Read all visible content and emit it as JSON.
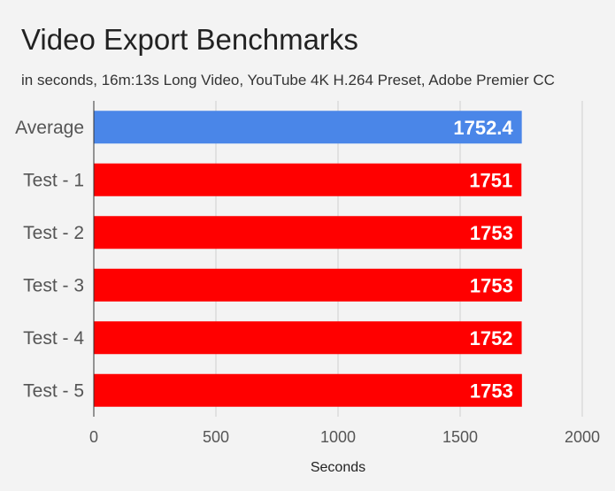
{
  "chart_data": {
    "type": "bar",
    "orientation": "horizontal",
    "title": "Video Export Benchmarks",
    "subtitle": "in seconds, 16m:13s Long Video, YouTube 4K H.264 Preset, Adobe Premier CC",
    "xlabel": "Seconds",
    "ylabel": "",
    "categories": [
      "Average",
      "Test - 1",
      "Test - 2",
      "Test - 3",
      "Test - 4",
      "Test - 5"
    ],
    "values": [
      1752.4,
      1751,
      1753,
      1753,
      1752,
      1753
    ],
    "value_labels": [
      "1752.4",
      "1751",
      "1753",
      "1753",
      "1752",
      "1753"
    ],
    "bar_colors": [
      "#4a86e8",
      "#ff0000",
      "#ff0000",
      "#ff0000",
      "#ff0000",
      "#ff0000"
    ],
    "xlim": [
      0,
      2000
    ],
    "xticks": [
      0,
      500,
      1000,
      1500,
      2000
    ],
    "xtick_labels": [
      "0",
      "500",
      "1000",
      "1500",
      "2000"
    ],
    "grid": true,
    "legend": "none"
  }
}
